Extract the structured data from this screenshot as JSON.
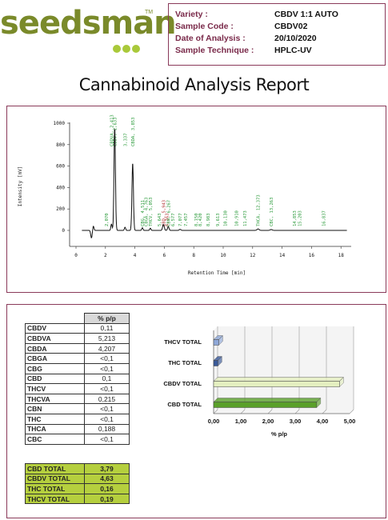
{
  "logo": {
    "name": "seedsman",
    "tm": "TM"
  },
  "info": {
    "rows": [
      {
        "label": "Variety :",
        "value": "CBDV 1:1 AUTO"
      },
      {
        "label": "Sample Code :",
        "value": "CBDV02"
      },
      {
        "label": "Date of Analysis :",
        "value": "20/10/2020"
      },
      {
        "label": "Sample Technique :",
        "value": "HPLC-UV"
      }
    ]
  },
  "title": "Cannabinoid Analysis Report",
  "chromatogram": {
    "ylabel": "Intensity [mV]",
    "xlabel": "Retention Time [min]",
    "yticks": [
      "1000",
      "800",
      "600",
      "400",
      "200",
      "0"
    ],
    "xticks": [
      "0",
      "2",
      "4",
      "6",
      "8",
      "10",
      "12",
      "14",
      "16",
      "18"
    ],
    "peak_labels": [
      {
        "rt": 2.07,
        "text": "2,070",
        "color": "#2a9a3a"
      },
      {
        "rt": 2.41,
        "text": "CBDVA, 2,413",
        "color": "#2a9a3a"
      },
      {
        "rt": 2.63,
        "text": "CBDV, 2,633",
        "color": "#2a9a3a"
      },
      {
        "rt": 3.33,
        "text": "3,337",
        "color": "#2a9a3a"
      },
      {
        "rt": 3.86,
        "text": "CBDA, 3,853",
        "color": "#2a9a3a"
      },
      {
        "rt": 4.51,
        "text": "CBG, 4,511",
        "color": "#2a9a3a"
      },
      {
        "rt": 4.76,
        "text": "CBGA, 4,763",
        "color": "#2a9a3a"
      },
      {
        "rt": 5.05,
        "text": "THCV, 5,053",
        "color": "#2a9a3a"
      },
      {
        "rt": 5.64,
        "text": "5,643",
        "color": "#2a9a3a"
      },
      {
        "rt": 5.94,
        "text": "CBD, 5,943",
        "color": "#b03030"
      },
      {
        "rt": 6.16,
        "text": "6,163",
        "color": "#b03030"
      },
      {
        "rt": 6.27,
        "text": "CBN, 6,267",
        "color": "#2a9a3a"
      },
      {
        "rt": 6.58,
        "text": "6,577",
        "color": "#2a9a3a"
      },
      {
        "rt": 7.07,
        "text": "7,077",
        "color": "#2a9a3a"
      },
      {
        "rt": 7.45,
        "text": "7,457",
        "color": "#2a9a3a"
      },
      {
        "rt": 8.15,
        "text": "8,150",
        "color": "#2a9a3a"
      },
      {
        "rt": 8.42,
        "text": "8,420",
        "color": "#2a9a3a"
      },
      {
        "rt": 8.98,
        "text": "8,983",
        "color": "#2a9a3a"
      },
      {
        "rt": 9.61,
        "text": "9,613",
        "color": "#2a9a3a"
      },
      {
        "rt": 10.13,
        "text": "10,130",
        "color": "#2a9a3a"
      },
      {
        "rt": 10.91,
        "text": "10,910",
        "color": "#2a9a3a"
      },
      {
        "rt": 11.47,
        "text": "11,473",
        "color": "#2a9a3a"
      },
      {
        "rt": 12.37,
        "text": "THCA, 12,373",
        "color": "#2a9a3a"
      },
      {
        "rt": 13.27,
        "text": "CBC, 13,263",
        "color": "#2a9a3a"
      },
      {
        "rt": 14.85,
        "text": "14,853",
        "color": "#2a9a3a"
      },
      {
        "rt": 15.2,
        "text": "15,203",
        "color": "#2a9a3a"
      },
      {
        "rt": 16.83,
        "text": "16,837",
        "color": "#2a9a3a"
      }
    ]
  },
  "results": {
    "header": "% p/p",
    "rows": [
      {
        "name": "CBDV",
        "value": "0,11"
      },
      {
        "name": "CBDVA",
        "value": "5,213"
      },
      {
        "name": "CBDA",
        "value": "4,207"
      },
      {
        "name": "CBGA",
        "value": "<0,1"
      },
      {
        "name": "CBG",
        "value": "<0,1"
      },
      {
        "name": "CBD",
        "value": "0,1"
      },
      {
        "name": "THCV",
        "value": "<0,1"
      },
      {
        "name": "THCVA",
        "value": "0,215"
      },
      {
        "name": "CBN",
        "value": "<0,1"
      },
      {
        "name": "THC",
        "value": "<0,1"
      },
      {
        "name": "THCA",
        "value": "0,188"
      },
      {
        "name": "CBC",
        "value": "<0,1"
      }
    ],
    "totals": [
      {
        "name": "CBD TOTAL",
        "value": "3,79"
      },
      {
        "name": "CBDV TOTAL",
        "value": "4,63"
      },
      {
        "name": "THC TOTAL",
        "value": "0,16"
      },
      {
        "name": "THCV TOTAL",
        "value": "0,19"
      }
    ]
  },
  "chart_data": {
    "type": "bar",
    "orientation": "horizontal",
    "categories": [
      "THCV TOTAL",
      "THC TOTAL",
      "CBDV TOTAL",
      "CBD TOTAL"
    ],
    "values": [
      0.19,
      0.16,
      4.63,
      3.79
    ],
    "colors": [
      "#8fa8d8",
      "#3a5a9a",
      "#e4efc0",
      "#5aa02a"
    ],
    "xlabel": "% p/p",
    "xlim": [
      0,
      5
    ],
    "xticks": [
      "0,00",
      "1,00",
      "2,00",
      "3,00",
      "4,00",
      "5,00"
    ],
    "grid": true
  }
}
